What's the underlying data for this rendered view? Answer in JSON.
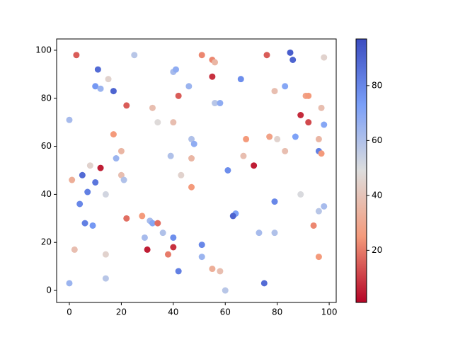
{
  "chart_data": {
    "type": "scatter",
    "colormap": "coolwarm_r",
    "clim": [
      1,
      97
    ],
    "colorbar_ticks": [
      20,
      40,
      60,
      80
    ],
    "xlim": [
      -4.9,
      102.7
    ],
    "ylim": [
      -5,
      104.7
    ],
    "xticks": [
      0,
      20,
      40,
      60,
      80,
      100
    ],
    "yticks": [
      0,
      20,
      40,
      60,
      80,
      100
    ],
    "x": [
      2.7,
      25,
      11,
      15,
      10,
      12,
      17,
      22,
      32,
      34,
      0,
      17,
      20,
      18,
      8,
      12,
      1,
      5,
      10,
      20,
      21,
      7,
      14,
      4,
      6,
      9,
      22,
      28,
      31,
      32,
      34,
      36,
      29,
      40,
      30,
      2,
      14,
      38,
      40,
      14,
      0,
      42,
      40,
      41,
      42,
      46,
      40,
      47,
      48,
      39,
      47,
      43,
      47,
      51,
      55,
      56,
      55,
      56,
      58,
      66,
      68,
      67,
      61,
      71,
      64,
      63,
      51,
      51,
      55,
      58,
      60,
      73,
      79,
      79,
      75,
      76,
      85,
      86,
      79,
      83,
      77,
      80,
      87,
      83,
      89,
      91,
      92,
      92,
      98,
      97,
      98,
      96,
      96,
      97,
      89,
      98,
      96,
      94,
      96
    ],
    "y": [
      98,
      98,
      92,
      88,
      85,
      84,
      83,
      77,
      76,
      70,
      71,
      65,
      58,
      55,
      52,
      51,
      46,
      48,
      45,
      48,
      46,
      41,
      40,
      36,
      28,
      27,
      30,
      31,
      29,
      28,
      28,
      24,
      22,
      22,
      17,
      17,
      15,
      15,
      18,
      5,
      3,
      8,
      91,
      92,
      81,
      85,
      70,
      63,
      61,
      56,
      55,
      48,
      43,
      98,
      96,
      95,
      89,
      78,
      78,
      88,
      63,
      56,
      50,
      52,
      32,
      31,
      19,
      14,
      9,
      8,
      0,
      24,
      24,
      37,
      3,
      98,
      99,
      96,
      83,
      85,
      64,
      63,
      64,
      58,
      73,
      81,
      81,
      70,
      97,
      76,
      69,
      63,
      58,
      57,
      40,
      35,
      33,
      27,
      14
    ],
    "c": [
      15,
      58,
      88,
      45,
      75,
      65,
      90,
      15,
      38,
      48,
      62,
      25,
      35,
      65,
      45,
      5,
      32,
      88,
      85,
      38,
      60,
      82,
      52,
      80,
      82,
      75,
      18,
      25,
      62,
      70,
      18,
      60,
      62,
      78,
      5,
      38,
      45,
      20,
      8,
      58,
      65,
      82,
      62,
      68,
      15,
      65,
      38,
      60,
      68,
      60,
      35,
      45,
      25,
      22,
      22,
      35,
      8,
      58,
      68,
      78,
      25,
      38,
      78,
      5,
      72,
      90,
      80,
      65,
      32,
      38,
      58,
      62,
      60,
      80,
      88,
      15,
      92,
      90,
      38,
      70,
      28,
      45,
      72,
      38,
      7,
      28,
      25,
      12,
      45,
      38,
      70,
      35,
      82,
      25,
      50,
      62,
      58,
      22,
      25
    ]
  }
}
